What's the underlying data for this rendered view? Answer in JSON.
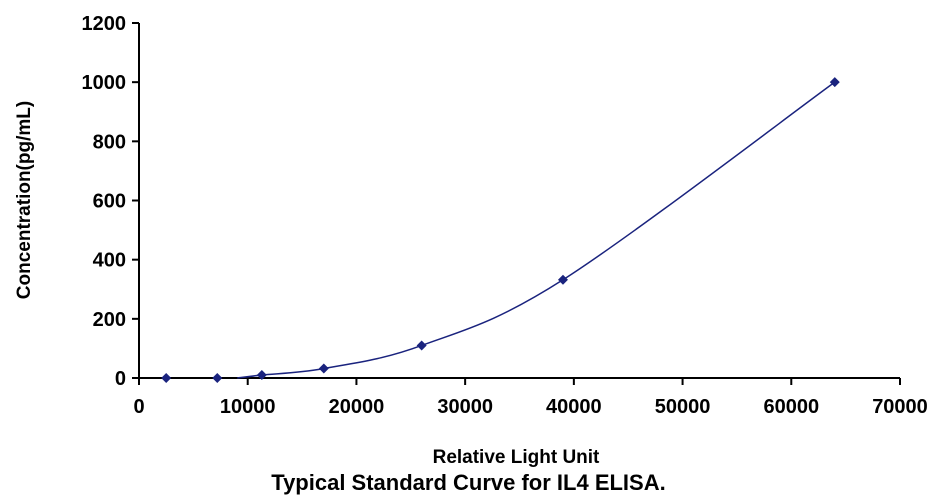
{
  "caption": "Typical Standard Curve for IL4 ELISA.",
  "chart_data": {
    "type": "scatter",
    "title": "",
    "xlabel": "Relative Light Unit",
    "ylabel": "Concentration(pg/mL)",
    "xlim": [
      0,
      70000
    ],
    "ylim": [
      0,
      1200
    ],
    "x_ticks": [
      "0",
      "10000",
      "20000",
      "30000",
      "40000",
      "50000",
      "60000",
      "70000"
    ],
    "y_ticks": [
      "0",
      "200",
      "400",
      "600",
      "800",
      "1000",
      "1200"
    ],
    "series": [
      {
        "x": [
          2500,
          7200,
          11300,
          17000,
          26000,
          39000,
          64000
        ],
        "y": [
          0,
          0,
          10,
          32,
          110,
          332,
          1000
        ],
        "fit_curve": true
      }
    ],
    "grid": false,
    "legend": "none",
    "colors": {
      "marker": "#1a237e",
      "curve": "#1a237e",
      "axis": "#000000"
    }
  }
}
